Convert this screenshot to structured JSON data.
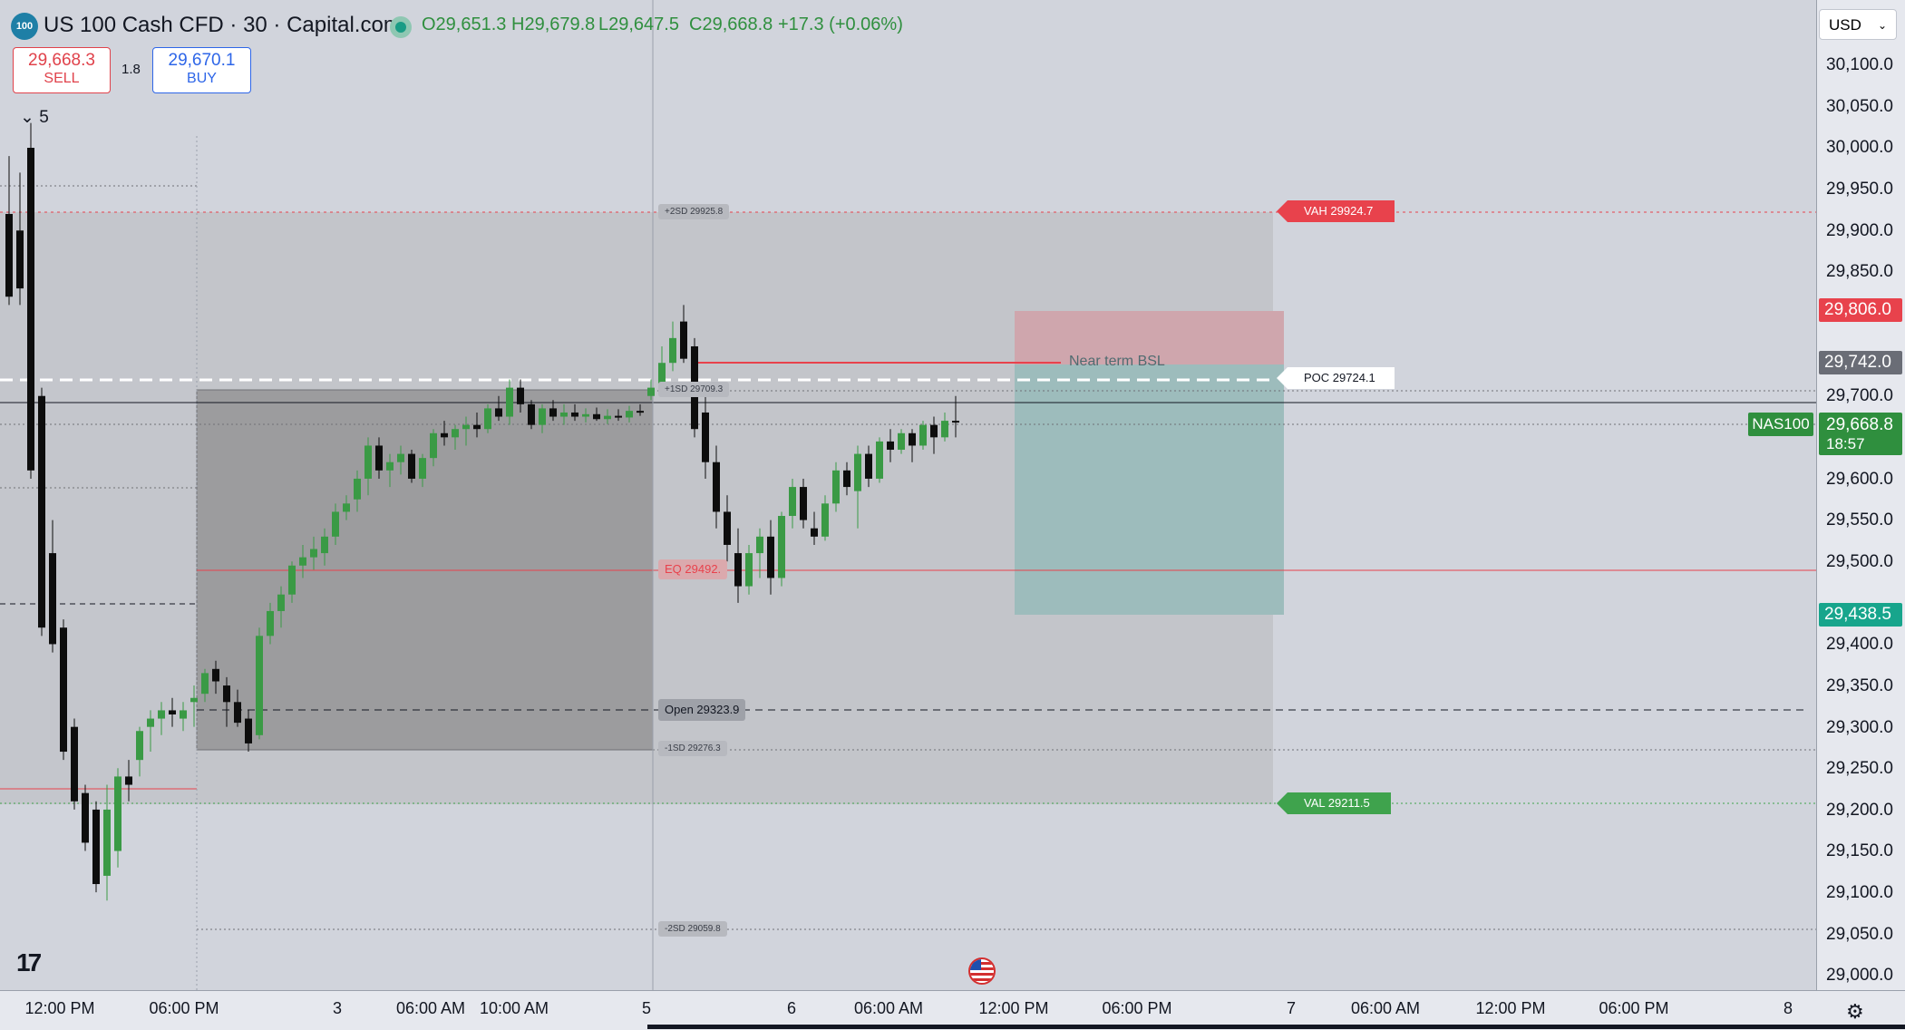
{
  "header": {
    "symbol_logo": "100",
    "title": "US 100 Cash CFD · 30 · Capital.com",
    "open": "O29,651.3",
    "high": "H29,679.8",
    "low": "L29,647.5",
    "close": "C29,668.8",
    "change": "+17.3 (+0.06%)"
  },
  "trade": {
    "sell_price": "29,668.3",
    "sell_label": "SELL",
    "spread": "1.8",
    "buy_price": "29,670.1",
    "buy_label": "BUY"
  },
  "collapse_count": "5",
  "currency": "USD",
  "price_ticks": [
    "30,100.0",
    "30,050.0",
    "30,000.0",
    "29,950.0",
    "29,900.0",
    "29,850.0",
    "29,700.0",
    "29,600.0",
    "29,550.0",
    "29,500.0",
    "29,400.0",
    "29,350.0",
    "29,300.0",
    "29,250.0",
    "29,200.0",
    "29,150.0",
    "29,100.0",
    "29,050.0",
    "29,000.0"
  ],
  "time_ticks": [
    "12:00 PM",
    "06:00 PM",
    "3",
    "06:00 AM",
    "10:00 AM",
    "5",
    "6",
    "06:00 AM",
    "12:00 PM",
    "06:00 PM",
    "7",
    "06:00 AM",
    "12:00 PM",
    "06:00 PM",
    "8"
  ],
  "levels": {
    "vah": "VAH  29924.7",
    "poc": "POC  29724.1",
    "val": "VAL  29211.5",
    "eq": "EQ  29492.",
    "open": "Open  29323.9",
    "plus2sd": "+2SD  29925.8",
    "plus1sd": "+1SD  29709.3",
    "minus1sd": "-1SD  29276.3",
    "minus2sd": "-2SD  29059.8",
    "near_bsl": "Near term BSL"
  },
  "axis_labels": {
    "stop": "29,806.0",
    "entry": "29,742.0",
    "target": "29,438.5",
    "symbol": "NAS100",
    "last": "29,668.8",
    "countdown": "18:57"
  },
  "colors": {
    "up": "#3a9a45",
    "down": "#0d0d0d",
    "red": "#e8424c",
    "green": "#3fa34d",
    "teal": "#17a58c"
  },
  "chart_data": {
    "type": "candlestick",
    "symbol": "US 100 Cash CFD",
    "timeframe": "30",
    "ylim": [
      28990,
      30130
    ],
    "last_price": 29668.8
  }
}
